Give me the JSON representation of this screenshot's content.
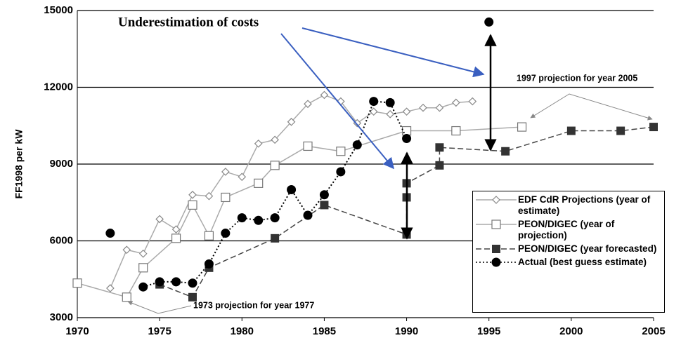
{
  "chart_data": {
    "type": "line",
    "y_label": "FF1998 per kW",
    "annotations": [
      "Underestimation of costs",
      "1997 projection for year 2005",
      "1973 projection for year 1977"
    ],
    "xlim": [
      1970,
      2005
    ],
    "xticks": [
      1970,
      1975,
      1980,
      1985,
      1990,
      1995,
      2000,
      2005
    ],
    "ylim": [
      3000,
      15000
    ],
    "yticks": [
      3000,
      6000,
      9000,
      12000,
      15000
    ],
    "grid": true,
    "series": [
      {
        "name": "EDF CdR Projections (year of estimate)",
        "color": "#aaaaaa",
        "marker": "diamond",
        "style": "solid",
        "x": [
          1972,
          1973,
          1974,
          1975,
          1976,
          1977,
          1978,
          1979,
          1980,
          1981,
          1982,
          1983,
          1984,
          1985,
          1986,
          1987,
          1988,
          1989,
          1990,
          1991,
          1992,
          1993,
          1994
        ],
        "values": [
          4150,
          5650,
          5500,
          6850,
          6450,
          7800,
          7750,
          8700,
          8500,
          9800,
          9950,
          10650,
          11350,
          11700,
          11450,
          10600,
          11050,
          10950,
          11050,
          11200,
          11200,
          11400,
          11450
        ]
      },
      {
        "name": "PEON/DIGEC (year of projection)",
        "color": "#aaaaaa",
        "marker": "open-square",
        "style": "solid",
        "x": [
          1970,
          1973,
          1974,
          1976,
          1977,
          1978,
          1979,
          1981,
          1982,
          1984,
          1986,
          1990,
          1993,
          1997
        ],
        "values": [
          4350,
          3800,
          4950,
          6100,
          7400,
          6200,
          7700,
          8250,
          8950,
          9700,
          9500,
          10300,
          10300,
          10450
        ]
      },
      {
        "name": "PEON/DIGEC (year forecasted)",
        "color": "#444444",
        "marker": "square",
        "style": "dashed",
        "x": [
          1975,
          1977,
          1978,
          1982,
          1985,
          1990,
          1990,
          1990,
          1992,
          1992,
          1996,
          2000,
          2003,
          2005
        ],
        "values": [
          4300,
          3800,
          4950,
          6100,
          7400,
          6250,
          7700,
          8250,
          8950,
          9650,
          9500,
          10300,
          10300,
          10450
        ]
      },
      {
        "name": "Actual (best guess estimate)",
        "color": "#000000",
        "marker": "circle",
        "style": "dotted",
        "x": [
          1972,
          1973,
          1974,
          1975,
          1976,
          1977,
          1978,
          1979,
          1980,
          1981,
          1982,
          1983,
          1984,
          1985,
          1986,
          1987,
          1988,
          1989,
          1990,
          1991,
          1995
        ],
        "values": [
          6300,
          null,
          4200,
          4400,
          4400,
          4350,
          5100,
          6300,
          6900,
          6800,
          6900,
          8000,
          7000,
          7800,
          8700,
          9750,
          11450,
          11400,
          10000,
          null,
          14550
        ]
      }
    ]
  }
}
